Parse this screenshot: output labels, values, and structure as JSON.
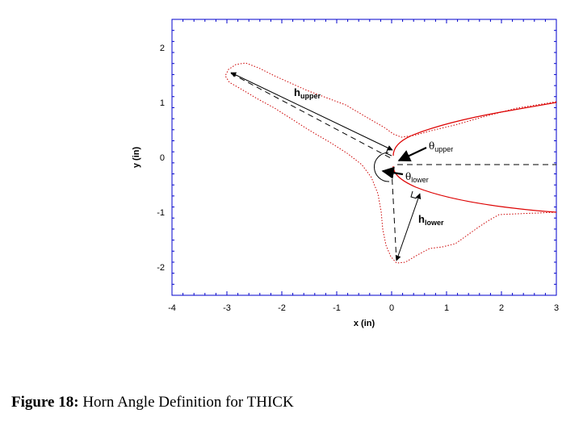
{
  "axes": {
    "xlabel": "x (in)",
    "ylabel": "y (in)",
    "xlim": [
      -4,
      3
    ],
    "ylim": [
      -2.5,
      2.5
    ],
    "xticks": [
      "-4",
      "-3",
      "-2",
      "-1",
      "0",
      "1",
      "2",
      "3"
    ],
    "yticks": [
      "2",
      "1",
      "0",
      "-1",
      "-2"
    ],
    "frame_color": "#0000cc"
  },
  "annotations": {
    "h_upper": {
      "main": "h",
      "sub": "upper"
    },
    "h_lower": {
      "main": "h",
      "sub": "lower"
    },
    "theta_upper": {
      "main": "θ",
      "sub": "upper"
    },
    "theta_lower": {
      "main": "θ",
      "sub": "lower"
    }
  },
  "colors": {
    "airfoil": "#dd0000",
    "ice_shape": "#cc0000",
    "construction": "#000000"
  },
  "caption": {
    "label": "Figure 18:",
    "text": "Horn Angle Definition for THICK"
  }
}
